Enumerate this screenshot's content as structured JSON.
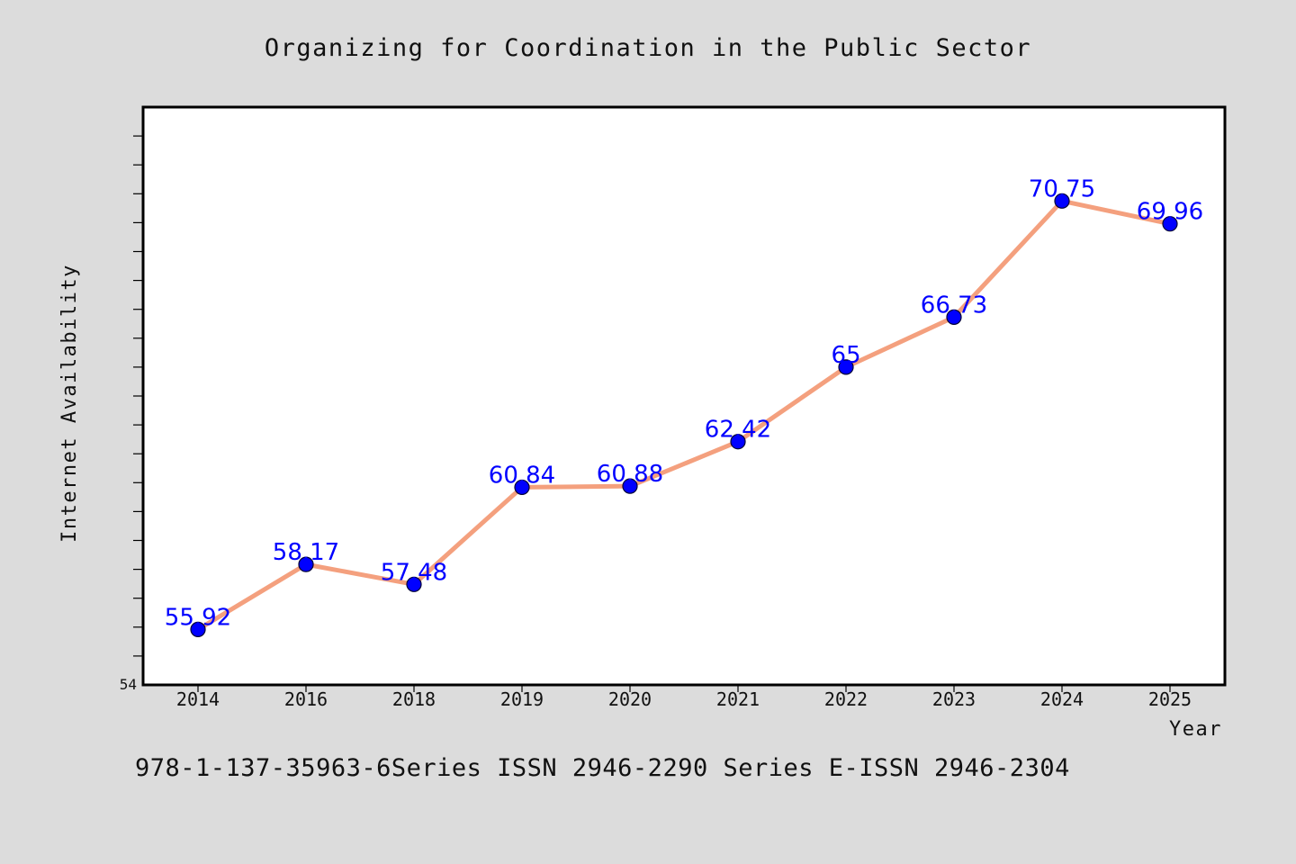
{
  "chart_data": {
    "type": "line",
    "title": "Organizing for Coordination in the Public Sector",
    "xlabel": "Year",
    "ylabel": "Internet Availability",
    "categories": [
      "2014",
      "2016",
      "2018",
      "2019",
      "2020",
      "2021",
      "2022",
      "2023",
      "2024",
      "2025"
    ],
    "series": [
      {
        "values": [
          55.92,
          58.17,
          57.48,
          60.84,
          60.88,
          62.42,
          65,
          66.73,
          70.75,
          69.96
        ],
        "labels": [
          "55.92",
          "58.17",
          "57.48",
          "60.84",
          "60.88",
          "62.42",
          "65",
          "66.73",
          "70.75",
          "69.96"
        ],
        "line_color": "#f4a07e",
        "marker_color": "#0000ff"
      }
    ],
    "ylim": [
      54,
      74
    ],
    "yticks_labeled": [
      "54"
    ],
    "grid": false,
    "legend": "none"
  },
  "footer": {
    "text": "978-1-137-35963-6Series ISSN 2946-2290 Series E-ISSN 2946-2304"
  },
  "colors": {
    "background": "#dcdcdc",
    "plot_background": "#ffffff",
    "line": "#f4a07e",
    "marker": "#0000ff",
    "data_label": "#0000ff"
  }
}
